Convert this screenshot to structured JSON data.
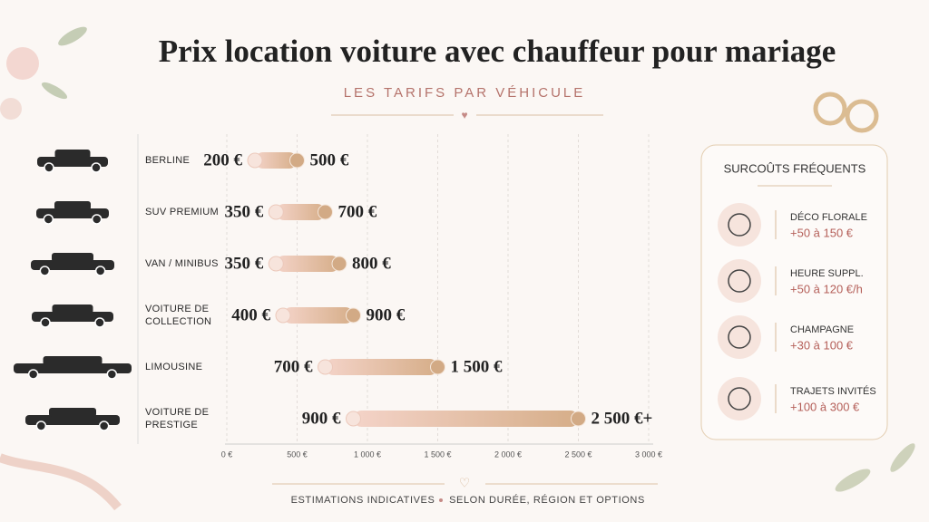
{
  "chart_data": {
    "type": "range-bar",
    "title": "Prix location voiture avec chauffeur pour mariage",
    "subtitle": "LES TARIFS PAR VÉHICULE",
    "categories": [
      "BERLINE",
      "SUV PREMIUM",
      "VAN / MINIBUS",
      "VOITURE DE COLLECTION",
      "LIMOUSINE",
      "VOITURE DE PRESTIGE"
    ],
    "ranges": [
      [
        200,
        500
      ],
      [
        350,
        700
      ],
      [
        350,
        800
      ],
      [
        400,
        900
      ],
      [
        700,
        1500
      ],
      [
        900,
        2500
      ]
    ],
    "value_labels": [
      [
        "200 €",
        "500 €"
      ],
      [
        "350 €",
        "700 €"
      ],
      [
        "350 €",
        "800 €"
      ],
      [
        "400 €",
        "900 €"
      ],
      [
        "700 €",
        "1 500 €"
      ],
      [
        "900 €",
        "2 500 €+"
      ]
    ],
    "xlim": [
      0,
      3000
    ],
    "xticks": [
      {
        "value": 0,
        "label": "0 €"
      },
      {
        "value": 500,
        "label": "500 €"
      },
      {
        "value": 1000,
        "label": "1 000 €"
      },
      {
        "value": 1500,
        "label": "1 500 €"
      },
      {
        "value": 2000,
        "label": "2 000 €"
      },
      {
        "value": 2500,
        "label": "2 500 €"
      },
      {
        "value": 3000,
        "label": "3 000 €"
      }
    ],
    "grid": true,
    "colors": [
      "#f4d3c8",
      "#d6ae89"
    ]
  },
  "extras": {
    "title": "SURCOÛTS FRÉQUENTS",
    "items": [
      {
        "label": "DÉCO FLORALE",
        "price": "+50 à 150 €"
      },
      {
        "label": "HEURE SUPPL.",
        "price": "+50 à 120 €/h"
      },
      {
        "label": "CHAMPAGNE",
        "price": "+30 à 100 €"
      },
      {
        "label": "TRAJETS INVITÉS",
        "price": "+100 à 300 €"
      }
    ]
  },
  "footer": [
    "ESTIMATIONS INDICATIVES",
    "SELON DURÉE, RÉGION ET OPTIONS"
  ]
}
